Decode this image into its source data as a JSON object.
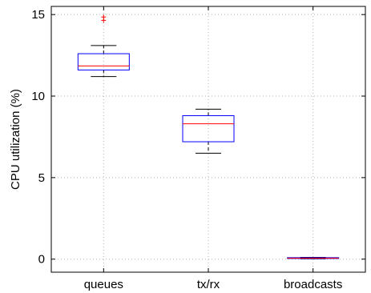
{
  "chart_data": {
    "type": "box",
    "title": "",
    "xlabel": "",
    "ylabel": "CPU utilization (%)",
    "ylim": [
      -0.8,
      15.5
    ],
    "yticks": [
      0,
      5,
      10,
      15
    ],
    "grid": true,
    "categories": [
      "queues",
      "tx/rx",
      "broadcasts"
    ],
    "boxes": [
      {
        "category": "queues",
        "whisker_low": 11.2,
        "q1": 11.6,
        "median": 11.85,
        "q3": 12.6,
        "whisker_high": 13.1,
        "outliers": [
          14.65,
          14.85
        ]
      },
      {
        "category": "tx/rx",
        "whisker_low": 6.5,
        "q1": 7.2,
        "median": 8.3,
        "q3": 8.8,
        "whisker_high": 9.2,
        "outliers": []
      },
      {
        "category": "broadcasts",
        "whisker_low": 0.02,
        "q1": 0.04,
        "median": 0.06,
        "q3": 0.09,
        "whisker_high": 0.11,
        "outliers": []
      }
    ],
    "colors": {
      "box": "#0000ff",
      "median": "#ff0000",
      "whisker": "#000000",
      "outlier": "#ff0000",
      "grid": "#b0b0b0"
    }
  }
}
